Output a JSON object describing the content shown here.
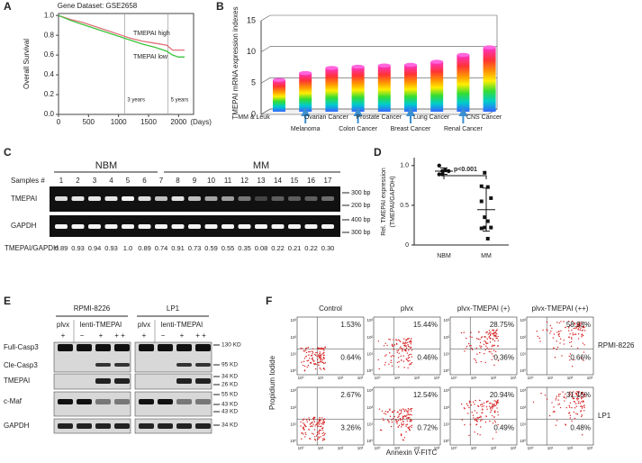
{
  "panels": {
    "a": {
      "label": "A",
      "title": "Gene Dataset: GSE2658",
      "y_label": "Overall Survival",
      "x_unit": "(Days)",
      "xlim": [
        0,
        2250
      ],
      "ylim": [
        0,
        1.02
      ],
      "xticks": [
        0,
        500,
        1000,
        1500,
        2000
      ],
      "yticks": [
        {
          "value": 0,
          "label": "0.0"
        },
        0.2,
        0.4,
        0.6,
        0.8,
        {
          "value": 1,
          "label": "1.0"
        }
      ],
      "markers": [
        {
          "text": "3 years",
          "x": 1100
        },
        {
          "text": "5 years",
          "x": 1825
        }
      ],
      "series": [
        {
          "name": "TMEPAI high",
          "color": "#e0707a",
          "x": [
            0,
            200,
            400,
            600,
            800,
            1000,
            1200,
            1400,
            1600,
            1800,
            1900,
            2000,
            2100
          ],
          "y": [
            1.0,
            0.96,
            0.93,
            0.89,
            0.85,
            0.81,
            0.77,
            0.74,
            0.72,
            0.7,
            0.65,
            0.65,
            0.65
          ]
        },
        {
          "name": "TMEPAI low",
          "color": "#3cc43c",
          "x": [
            0,
            200,
            400,
            600,
            800,
            1000,
            1200,
            1400,
            1600,
            1800,
            1900,
            2000,
            2100
          ],
          "y": [
            1.0,
            0.95,
            0.91,
            0.87,
            0.83,
            0.79,
            0.75,
            0.71,
            0.68,
            0.64,
            0.6,
            0.58,
            0.58
          ]
        }
      ]
    },
    "b": {
      "label": "B",
      "y_label": "TMEPAI mRNA expression indexes",
      "ylim": [
        0,
        15
      ],
      "yticks": [
        0,
        5,
        10,
        15
      ],
      "categories": [
        "MM & Leuk",
        "Melanoma",
        "Ovarian Cancer",
        "Colon Cancer",
        "Prostate Cancer",
        "Breast Cancer",
        "Lung Cancer",
        "Renal Cancer",
        "CNS Cancer"
      ],
      "values": [
        5.1,
        6.2,
        7.0,
        7.2,
        7.4,
        7.5,
        8.0,
        9.1,
        10.3
      ]
    },
    "c": {
      "label": "C",
      "groups": [
        "NBM",
        "MM"
      ],
      "samples_label": "Samples #",
      "samples": [
        "1",
        "2",
        "3",
        "4",
        "5",
        "6",
        "7",
        "8",
        "9",
        "10",
        "11",
        "12",
        "13",
        "14",
        "15",
        "16",
        "17"
      ],
      "rows": [
        "TMEPAI",
        "GAPDH"
      ],
      "ratio_label": "TMEPAI/GAPDH",
      "ratios": [
        "0.89",
        "0.93",
        "0.94",
        "0.93",
        "1.0",
        "0.89",
        "0.74",
        "0.91",
        "0.73",
        "0.59",
        "0.55",
        "0.35",
        "0.08",
        "0.22",
        "0.21",
        "0.22",
        "0.30"
      ],
      "sizes": [
        "300 bp",
        "200 bp",
        "400 bp",
        "300 bp"
      ]
    },
    "d": {
      "label": "D",
      "y_label": [
        "Rel. TMEPAI expression",
        "(TMEPAI/GAPDH)"
      ],
      "ylim": [
        0,
        1.1
      ],
      "yticks": [
        0,
        0.5,
        {
          "value": 1,
          "label": "1.0"
        }
      ],
      "p_value": "p<0.001",
      "categories": [
        "NBM",
        "MM"
      ],
      "values": [
        [
          0.89,
          0.93,
          0.94,
          0.93,
          1.0,
          0.89
        ],
        [
          0.74,
          0.91,
          0.73,
          0.59,
          0.55,
          0.35,
          0.08,
          0.22,
          0.21,
          0.22,
          0.3
        ]
      ]
    },
    "e": {
      "label": "E",
      "groups": [
        {
          "cell": "RPMI-8226",
          "vector": "plvx",
          "treatment": "lenti-TMEPAI",
          "signs": [
            "+",
            "−",
            "+",
            "+ +"
          ]
        },
        {
          "cell": "LP1",
          "vector": "plvx",
          "treatment": "lenti-TMEPAI",
          "signs": [
            "+",
            "−",
            "+",
            "+ +"
          ]
        }
      ],
      "rows": [
        "Full-Casp3",
        "Cle-Casp3",
        "TMEPAI",
        "c-Maf",
        "GAPDH"
      ],
      "markers": [
        "130 KD",
        "95 KD",
        "34 KD",
        "26 KD",
        "55 KD",
        "43 KD",
        "43 KD",
        "34 KD"
      ]
    },
    "f": {
      "label": "F",
      "columns": [
        "Control",
        "plvx",
        "plvx-TMEPAI (+)",
        "plvx-TMEPAI (++)"
      ],
      "rows": [
        "RPMI-8226",
        "LP1"
      ],
      "y_label": "Propidium Iodide",
      "x_label": "Annexin V-FITC",
      "tick_labels": [
        "10⁰",
        "10¹",
        "10²",
        "10³"
      ],
      "percentages": [
        [
          [
            "1.53%",
            "0.64%"
          ],
          [
            "15.44%",
            "0.46%"
          ],
          [
            "28.75%",
            "0.36%"
          ],
          [
            "58.93%",
            "0.66%"
          ]
        ],
        [
          [
            "2.67%",
            "3.26%"
          ],
          [
            "12.54%",
            "0.72%"
          ],
          [
            "20.94%",
            "0.49%"
          ],
          [
            "31.15%",
            "0.48%"
          ]
        ]
      ]
    }
  }
}
